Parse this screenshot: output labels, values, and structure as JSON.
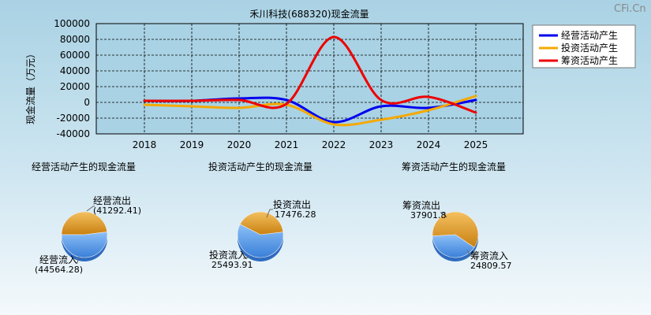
{
  "watermark": "CFi.Cn",
  "chart_data": [
    {
      "type": "line",
      "title": "禾川科技(688320)现金流量",
      "ylabel": "现金流量（万元）",
      "xlabel": "",
      "x": [
        "2018",
        "2019",
        "2020",
        "2021",
        "2022",
        "2023",
        "2024",
        "2025"
      ],
      "ylim": [
        -40000,
        100000
      ],
      "yticks": [
        100000,
        80000,
        60000,
        40000,
        20000,
        0,
        -20000,
        -40000
      ],
      "grid": true,
      "legend": "top-right",
      "series": [
        {
          "name": "经营活动产生",
          "color": "#0000ee",
          "values": [
            2000,
            2000,
            5000,
            3000,
            -25000,
            -5000,
            -7000,
            3000
          ]
        },
        {
          "name": "投资活动产生",
          "color": "#f5a800",
          "values": [
            -3000,
            -5000,
            -7000,
            -3000,
            -28000,
            -22000,
            -10000,
            8000
          ]
        },
        {
          "name": "筹资活动产生",
          "color": "#ee0000",
          "values": [
            2000,
            2000,
            3000,
            -2000,
            83000,
            3000,
            7000,
            -13000
          ]
        }
      ]
    },
    {
      "type": "pie",
      "title": "经营活动产生的现金流量",
      "slices": [
        {
          "label": "经营流出",
          "value_text": "(41292.41)",
          "value": 41292.41,
          "color": "#e8a020"
        },
        {
          "label": "经营流入",
          "value_text": "(44564.28)",
          "value": 44564.28,
          "color": "#4a90e8"
        }
      ]
    },
    {
      "type": "pie",
      "title": "投资活动产生的现金流量",
      "slices": [
        {
          "label": "投资流出",
          "value_text": "17476.28",
          "value": 17476.28,
          "color": "#e8a020"
        },
        {
          "label": "投资流入",
          "value_text": "25493.91",
          "value": 25493.91,
          "color": "#4a90e8"
        }
      ]
    },
    {
      "type": "pie",
      "title": "筹资活动产生的现金流量",
      "slices": [
        {
          "label": "筹资流出",
          "value_text": "37901.8",
          "value": 37901.8,
          "color": "#e8a020"
        },
        {
          "label": "筹资流入",
          "value_text": "24809.57",
          "value": 24809.57,
          "color": "#4a90e8"
        }
      ]
    }
  ]
}
